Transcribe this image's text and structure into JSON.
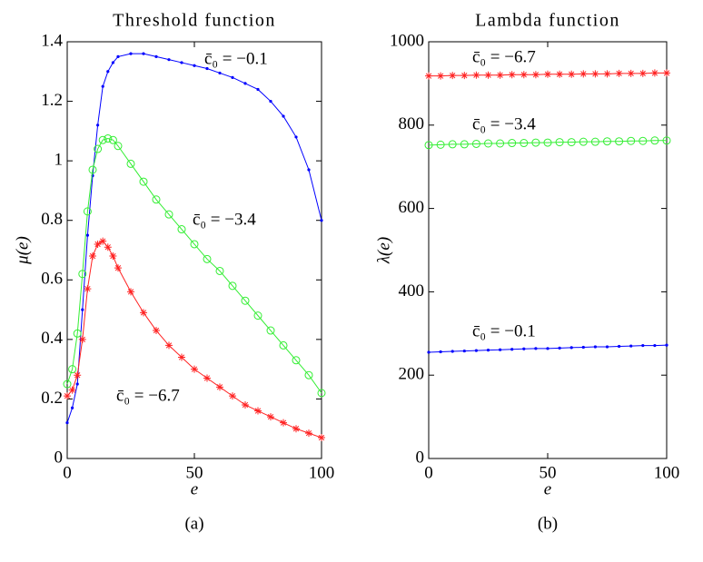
{
  "chart_data": [
    {
      "type": "line",
      "title": "Threshold function",
      "xlabel": "e",
      "ylabel": "μ(e)",
      "caption": "(a)",
      "x": [
        0,
        2,
        4,
        6,
        8,
        10,
        12,
        14,
        16,
        18,
        20,
        25,
        30,
        35,
        40,
        45,
        50,
        55,
        60,
        65,
        70,
        75,
        80,
        85,
        90,
        95,
        100
      ],
      "xlim": [
        0,
        100
      ],
      "xticks": [
        0,
        50,
        100
      ],
      "ylim": [
        0,
        1.4
      ],
      "yticks": [
        0,
        0.2,
        0.4,
        0.6,
        0.8,
        1,
        1.2,
        1.4
      ],
      "series": [
        {
          "name": "c̄₀ = −0.1",
          "color": "#0000ff",
          "marker": "dot",
          "values": [
            0.12,
            0.17,
            0.25,
            0.5,
            0.75,
            0.95,
            1.12,
            1.25,
            1.3,
            1.33,
            1.35,
            1.36,
            1.36,
            1.35,
            1.34,
            1.33,
            1.32,
            1.31,
            1.295,
            1.28,
            1.26,
            1.24,
            1.2,
            1.15,
            1.08,
            0.97,
            0.8
          ]
        },
        {
          "name": "c̄₀ = −3.4",
          "color": "#33ee33",
          "marker": "circle",
          "values": [
            0.25,
            0.3,
            0.42,
            0.62,
            0.83,
            0.97,
            1.04,
            1.07,
            1.075,
            1.07,
            1.05,
            0.99,
            0.93,
            0.87,
            0.82,
            0.77,
            0.72,
            0.67,
            0.63,
            0.58,
            0.53,
            0.48,
            0.43,
            0.38,
            0.33,
            0.28,
            0.22
          ]
        },
        {
          "name": "c̄₀ = −6.7",
          "color": "#ff2222",
          "marker": "star",
          "values": [
            0.21,
            0.23,
            0.28,
            0.4,
            0.57,
            0.68,
            0.72,
            0.73,
            0.71,
            0.68,
            0.64,
            0.56,
            0.49,
            0.43,
            0.38,
            0.34,
            0.3,
            0.27,
            0.24,
            0.21,
            0.18,
            0.16,
            0.14,
            0.12,
            0.1,
            0.085,
            0.07
          ]
        }
      ]
    },
    {
      "type": "line",
      "title": "Lambda function",
      "xlabel": "e",
      "ylabel": "λ(e)",
      "caption": "(b)",
      "x": [
        0,
        5,
        10,
        15,
        20,
        25,
        30,
        35,
        40,
        45,
        50,
        55,
        60,
        65,
        70,
        75,
        80,
        85,
        90,
        95,
        100
      ],
      "xlim": [
        0,
        100
      ],
      "xticks": [
        0,
        50,
        100
      ],
      "ylim": [
        0,
        1000
      ],
      "yticks": [
        0,
        200,
        400,
        600,
        800,
        1000
      ],
      "series": [
        {
          "name": "c̄₀ = −0.1",
          "color": "#0000ff",
          "marker": "dot",
          "values": [
            255,
            256,
            257,
            258,
            259,
            260,
            261,
            262,
            263,
            264,
            264,
            265,
            266,
            267,
            268,
            268,
            269,
            270,
            271,
            271,
            272
          ]
        },
        {
          "name": "c̄₀ = −3.4",
          "color": "#33ee33",
          "marker": "circle",
          "values": [
            752,
            753,
            754,
            754,
            755,
            756,
            756,
            757,
            757,
            758,
            758,
            759,
            759,
            760,
            760,
            761,
            761,
            762,
            762,
            763,
            763
          ]
        },
        {
          "name": "c̄₀ = −6.7",
          "color": "#ff2222",
          "marker": "star",
          "values": [
            918,
            918,
            919,
            919,
            920,
            920,
            920,
            921,
            921,
            921,
            922,
            922,
            922,
            923,
            923,
            923,
            924,
            924,
            924,
            925,
            925
          ]
        }
      ]
    }
  ]
}
